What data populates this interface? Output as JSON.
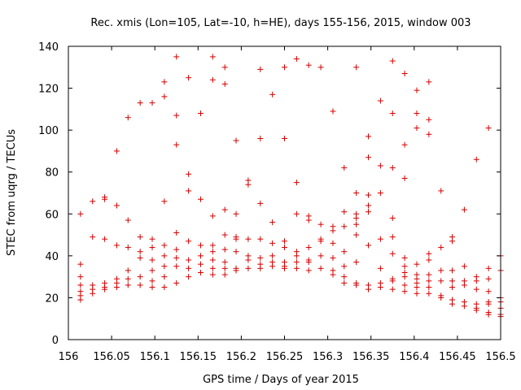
{
  "chart_data": {
    "type": "scatter",
    "title": "Rec. xmis (Lon=105, Lat=-10, h=HE), days 155-156, 2015, window 003",
    "xlabel": "GPS time / Days of year 2015",
    "ylabel": "STEC from uqrg / TECUs",
    "xlim": [
      156,
      156.5
    ],
    "ylim": [
      0,
      140
    ],
    "xticks": [
      "156",
      "156.05",
      "156.1",
      "156.15",
      "156.2",
      "156.25",
      "156.3",
      "156.35",
      "156.4",
      "156.45",
      "156.5"
    ],
    "yticks": [
      "0",
      "20",
      "40",
      "60",
      "80",
      "100",
      "120",
      "140"
    ],
    "grid": false,
    "marker": "plus",
    "color": "#d40000",
    "points": [
      [
        156.014,
        60
      ],
      [
        156.014,
        36
      ],
      [
        156.014,
        30
      ],
      [
        156.014,
        26
      ],
      [
        156.014,
        23
      ],
      [
        156.014,
        21
      ],
      [
        156.014,
        19
      ],
      [
        156.028,
        66
      ],
      [
        156.028,
        49
      ],
      [
        156.028,
        26
      ],
      [
        156.028,
        24
      ],
      [
        156.028,
        22
      ],
      [
        156.042,
        68
      ],
      [
        156.042,
        67
      ],
      [
        156.042,
        48
      ],
      [
        156.042,
        27
      ],
      [
        156.042,
        25
      ],
      [
        156.042,
        24
      ],
      [
        156.056,
        90
      ],
      [
        156.056,
        64
      ],
      [
        156.056,
        45
      ],
      [
        156.056,
        29
      ],
      [
        156.056,
        27
      ],
      [
        156.056,
        25
      ],
      [
        156.069,
        106
      ],
      [
        156.069,
        57
      ],
      [
        156.069,
        44
      ],
      [
        156.069,
        33
      ],
      [
        156.069,
        29
      ],
      [
        156.069,
        26
      ],
      [
        156.083,
        113
      ],
      [
        156.083,
        49
      ],
      [
        156.083,
        42
      ],
      [
        156.083,
        39
      ],
      [
        156.083,
        30
      ],
      [
        156.083,
        26
      ],
      [
        156.097,
        113
      ],
      [
        156.097,
        48
      ],
      [
        156.097,
        44
      ],
      [
        156.097,
        38
      ],
      [
        156.097,
        33
      ],
      [
        156.097,
        28
      ],
      [
        156.097,
        25
      ],
      [
        156.111,
        123
      ],
      [
        156.111,
        116
      ],
      [
        156.111,
        66
      ],
      [
        156.111,
        45
      ],
      [
        156.111,
        40
      ],
      [
        156.111,
        35
      ],
      [
        156.111,
        30
      ],
      [
        156.111,
        25
      ],
      [
        156.125,
        135
      ],
      [
        156.125,
        107
      ],
      [
        156.125,
        93
      ],
      [
        156.125,
        51
      ],
      [
        156.125,
        43
      ],
      [
        156.125,
        39
      ],
      [
        156.125,
        35
      ],
      [
        156.125,
        27
      ],
      [
        156.139,
        125
      ],
      [
        156.139,
        79
      ],
      [
        156.139,
        71
      ],
      [
        156.139,
        47
      ],
      [
        156.139,
        38
      ],
      [
        156.139,
        34
      ],
      [
        156.139,
        30
      ],
      [
        156.153,
        108
      ],
      [
        156.153,
        67
      ],
      [
        156.153,
        45
      ],
      [
        156.153,
        40
      ],
      [
        156.153,
        36
      ],
      [
        156.153,
        32
      ],
      [
        156.167,
        135
      ],
      [
        156.167,
        124
      ],
      [
        156.167,
        59
      ],
      [
        156.167,
        45
      ],
      [
        156.167,
        42
      ],
      [
        156.167,
        38
      ],
      [
        156.167,
        34
      ],
      [
        156.167,
        31
      ],
      [
        156.181,
        130
      ],
      [
        156.181,
        122
      ],
      [
        156.181,
        62
      ],
      [
        156.181,
        50
      ],
      [
        156.181,
        43
      ],
      [
        156.181,
        37
      ],
      [
        156.181,
        34
      ],
      [
        156.181,
        31
      ],
      [
        156.194,
        95
      ],
      [
        156.194,
        60
      ],
      [
        156.194,
        49
      ],
      [
        156.194,
        48
      ],
      [
        156.194,
        42
      ],
      [
        156.194,
        34
      ],
      [
        156.194,
        33
      ],
      [
        156.208,
        76
      ],
      [
        156.208,
        74
      ],
      [
        156.208,
        48
      ],
      [
        156.208,
        40
      ],
      [
        156.208,
        38
      ],
      [
        156.208,
        34
      ],
      [
        156.222,
        129
      ],
      [
        156.222,
        96
      ],
      [
        156.222,
        65
      ],
      [
        156.222,
        48
      ],
      [
        156.222,
        39
      ],
      [
        156.222,
        36
      ],
      [
        156.222,
        34
      ],
      [
        156.236,
        117
      ],
      [
        156.236,
        56
      ],
      [
        156.236,
        46
      ],
      [
        156.236,
        40
      ],
      [
        156.236,
        37
      ],
      [
        156.236,
        35
      ],
      [
        156.25,
        130
      ],
      [
        156.25,
        96
      ],
      [
        156.25,
        47
      ],
      [
        156.25,
        44
      ],
      [
        156.25,
        37
      ],
      [
        156.25,
        35
      ],
      [
        156.25,
        34
      ],
      [
        156.264,
        134
      ],
      [
        156.264,
        75
      ],
      [
        156.264,
        60
      ],
      [
        156.264,
        42
      ],
      [
        156.264,
        40
      ],
      [
        156.264,
        37
      ],
      [
        156.264,
        34
      ],
      [
        156.278,
        131
      ],
      [
        156.278,
        59
      ],
      [
        156.278,
        57
      ],
      [
        156.278,
        44
      ],
      [
        156.278,
        38
      ],
      [
        156.278,
        37
      ],
      [
        156.278,
        33
      ],
      [
        156.292,
        130
      ],
      [
        156.292,
        55
      ],
      [
        156.292,
        48
      ],
      [
        156.292,
        47
      ],
      [
        156.292,
        40
      ],
      [
        156.292,
        34
      ],
      [
        156.306,
        109
      ],
      [
        156.306,
        54
      ],
      [
        156.306,
        52
      ],
      [
        156.306,
        46
      ],
      [
        156.306,
        39
      ],
      [
        156.306,
        33
      ],
      [
        156.306,
        31
      ],
      [
        156.319,
        82
      ],
      [
        156.319,
        61
      ],
      [
        156.319,
        54
      ],
      [
        156.319,
        42
      ],
      [
        156.319,
        35
      ],
      [
        156.319,
        30
      ],
      [
        156.319,
        27
      ],
      [
        156.333,
        130
      ],
      [
        156.333,
        70
      ],
      [
        156.333,
        60
      ],
      [
        156.333,
        58
      ],
      [
        156.333,
        55
      ],
      [
        156.333,
        50
      ],
      [
        156.333,
        37
      ],
      [
        156.333,
        27
      ],
      [
        156.333,
        26
      ],
      [
        156.347,
        97
      ],
      [
        156.347,
        87
      ],
      [
        156.347,
        69
      ],
      [
        156.347,
        64
      ],
      [
        156.347,
        61
      ],
      [
        156.347,
        45
      ],
      [
        156.347,
        26
      ],
      [
        156.347,
        24
      ],
      [
        156.361,
        114
      ],
      [
        156.361,
        83
      ],
      [
        156.361,
        70
      ],
      [
        156.361,
        48
      ],
      [
        156.361,
        34
      ],
      [
        156.361,
        27
      ],
      [
        156.361,
        25
      ],
      [
        156.375,
        133
      ],
      [
        156.375,
        108
      ],
      [
        156.375,
        82
      ],
      [
        156.375,
        58
      ],
      [
        156.375,
        49
      ],
      [
        156.375,
        41
      ],
      [
        156.375,
        29
      ],
      [
        156.375,
        28
      ],
      [
        156.375,
        24
      ],
      [
        156.389,
        127
      ],
      [
        156.389,
        93
      ],
      [
        156.389,
        77
      ],
      [
        156.389,
        39
      ],
      [
        156.389,
        35
      ],
      [
        156.389,
        32
      ],
      [
        156.389,
        30
      ],
      [
        156.389,
        26
      ],
      [
        156.389,
        23
      ],
      [
        156.403,
        119
      ],
      [
        156.403,
        108
      ],
      [
        156.403,
        101
      ],
      [
        156.403,
        36
      ],
      [
        156.403,
        31
      ],
      [
        156.403,
        29
      ],
      [
        156.403,
        27
      ],
      [
        156.403,
        25
      ],
      [
        156.403,
        22
      ],
      [
        156.417,
        123
      ],
      [
        156.417,
        105
      ],
      [
        156.417,
        98
      ],
      [
        156.417,
        41
      ],
      [
        156.417,
        38
      ],
      [
        156.417,
        31
      ],
      [
        156.417,
        28
      ],
      [
        156.417,
        25
      ],
      [
        156.417,
        22
      ],
      [
        156.431,
        71
      ],
      [
        156.431,
        44
      ],
      [
        156.431,
        33
      ],
      [
        156.431,
        28
      ],
      [
        156.431,
        21
      ],
      [
        156.431,
        20
      ],
      [
        156.444,
        49
      ],
      [
        156.444,
        47
      ],
      [
        156.444,
        33
      ],
      [
        156.444,
        28
      ],
      [
        156.444,
        25
      ],
      [
        156.444,
        19
      ],
      [
        156.444,
        17
      ],
      [
        156.458,
        62
      ],
      [
        156.458,
        35
      ],
      [
        156.458,
        28
      ],
      [
        156.458,
        26
      ],
      [
        156.458,
        18
      ],
      [
        156.458,
        16
      ],
      [
        156.472,
        86
      ],
      [
        156.472,
        30
      ],
      [
        156.472,
        28
      ],
      [
        156.472,
        24
      ],
      [
        156.472,
        17
      ],
      [
        156.472,
        15
      ],
      [
        156.472,
        14
      ],
      [
        156.486,
        101
      ],
      [
        156.486,
        34
      ],
      [
        156.486,
        29
      ],
      [
        156.486,
        23
      ],
      [
        156.486,
        18
      ],
      [
        156.486,
        17
      ],
      [
        156.486,
        13
      ],
      [
        156.486,
        12
      ],
      [
        156.5,
        40
      ],
      [
        156.5,
        33
      ],
      [
        156.5,
        20
      ],
      [
        156.5,
        18
      ],
      [
        156.5,
        15
      ],
      [
        156.5,
        12
      ],
      [
        156.5,
        11
      ]
    ]
  }
}
